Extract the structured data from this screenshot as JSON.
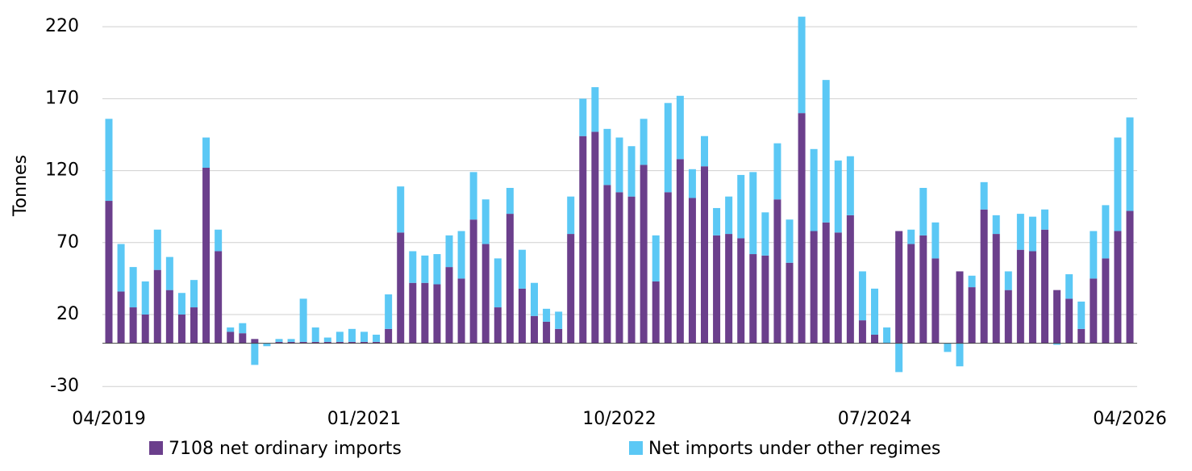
{
  "chart_data": {
    "type": "stacked_bar",
    "y_label": "Tonnes",
    "categories": [
      "04/2019",
      null,
      null,
      null,
      null,
      null,
      null,
      null,
      null,
      null,
      null,
      null,
      null,
      null,
      null,
      null,
      null,
      null,
      null,
      null,
      null,
      "01/2021",
      null,
      null,
      null,
      null,
      null,
      null,
      null,
      null,
      null,
      null,
      null,
      null,
      null,
      null,
      null,
      null,
      null,
      null,
      null,
      null,
      "10/2022",
      null,
      null,
      null,
      null,
      null,
      null,
      null,
      null,
      null,
      null,
      null,
      null,
      null,
      null,
      null,
      null,
      null,
      null,
      null,
      null,
      "07/2024",
      null,
      null,
      null,
      null,
      null,
      null,
      null,
      null,
      null,
      null,
      null,
      null,
      null,
      null,
      null,
      null,
      null,
      null,
      null,
      null,
      "04/2026"
    ],
    "series": [
      {
        "name": "7108 net ordinary imports",
        "color": "#6b3f8c",
        "values": [
          99,
          36,
          25,
          20,
          51,
          37,
          20,
          25,
          122,
          64,
          8,
          7,
          3,
          0,
          1,
          1,
          1,
          1,
          1,
          1,
          1,
          1,
          1,
          10,
          77,
          42,
          42,
          41,
          53,
          45,
          86,
          69,
          25,
          90,
          38,
          19,
          15,
          10,
          76,
          144,
          147,
          110,
          105,
          102,
          124,
          43,
          105,
          128,
          101,
          123,
          75,
          76,
          73,
          62,
          61,
          100,
          56,
          160,
          78,
          84,
          77,
          89,
          16,
          6,
          0,
          78,
          69,
          75,
          59,
          0,
          50,
          39,
          93,
          76,
          37,
          65,
          64,
          79,
          37,
          31,
          10,
          45,
          59,
          78,
          92
        ]
      },
      {
        "name": "Net imports under other regimes",
        "color": "#5bc8f5",
        "values": [
          57,
          33,
          28,
          23,
          28,
          23,
          15,
          19,
          21,
          15,
          3,
          7,
          -15,
          -2,
          2,
          2,
          30,
          10,
          3,
          7,
          9,
          7,
          5,
          24,
          32,
          22,
          19,
          21,
          22,
          33,
          33,
          31,
          34,
          18,
          27,
          23,
          9,
          12,
          26,
          26,
          31,
          39,
          38,
          35,
          32,
          32,
          62,
          44,
          20,
          21,
          19,
          26,
          44,
          57,
          30,
          39,
          30,
          67,
          57,
          99,
          50,
          41,
          34,
          32,
          11,
          -20,
          10,
          33,
          25,
          -6,
          -16,
          8,
          19,
          13,
          13,
          25,
          24,
          14,
          -1,
          17,
          19,
          33,
          37,
          65,
          65
        ]
      }
    ],
    "ylim": [
      -30,
      230
    ],
    "yticks": [
      -30,
      20,
      70,
      120,
      170,
      220
    ],
    "grid": true
  }
}
